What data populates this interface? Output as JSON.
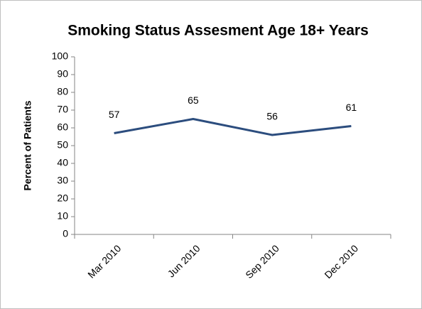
{
  "chart_data": {
    "type": "line",
    "title": "Smoking Status Assesment Age 18+ Years",
    "y_label": "Percent of Patients",
    "categories": [
      "Mar 2010",
      "Jun 2010",
      "Sep 2010",
      "Dec 2010"
    ],
    "series": [
      {
        "name": "Percent of Patients",
        "color": "#2c4d7e",
        "values": [
          57,
          65,
          56,
          61
        ]
      }
    ],
    "ylim": [
      0,
      100
    ],
    "yticks": [
      0,
      10,
      20,
      30,
      40,
      50,
      60,
      70,
      80,
      90,
      100
    ],
    "grid": false,
    "data_labels": true
  }
}
